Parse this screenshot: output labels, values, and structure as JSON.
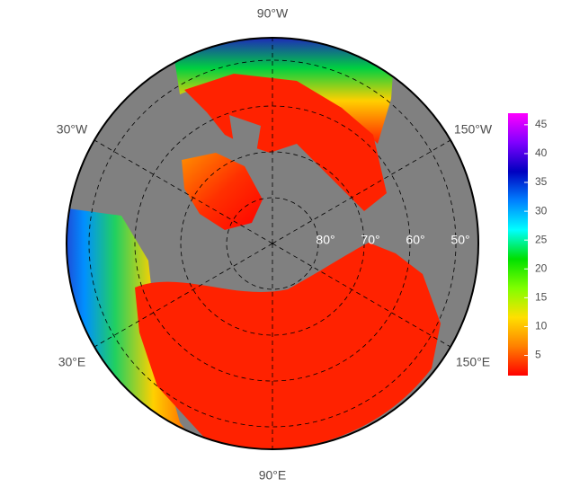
{
  "map": {
    "longitude_labels": [
      "90°W",
      "30°W",
      "150°W",
      "30°E",
      "150°E",
      "90°E"
    ],
    "latitude_labels": [
      "80°",
      "70°",
      "60°",
      "50°"
    ],
    "colorbar": {
      "range": [
        1.5,
        47
      ],
      "ticks": [
        5,
        10,
        15,
        20,
        25,
        30,
        35,
        40,
        45
      ],
      "colors": [
        "#ff0000",
        "#ff8000",
        "#ffe000",
        "#80ff00",
        "#00e000",
        "#00ffff",
        "#0080ff",
        "#0000c0",
        "#8000ff",
        "#ff00ff"
      ]
    }
  }
}
